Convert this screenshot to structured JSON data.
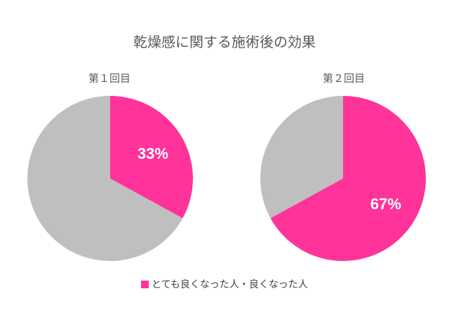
{
  "chart_data": {
    "type": "pie",
    "title": "乾燥感に関する施術後の効果",
    "colors": {
      "highlight": "#ff3399",
      "other": "#bfbfbf"
    },
    "legend": {
      "label": "とても良くなった人・良くなった人",
      "placement": "bottom"
    },
    "pies": [
      {
        "label": "第１回目",
        "value": 33,
        "value_label": "33%"
      },
      {
        "label": "第２回目",
        "value": 67,
        "value_label": "67%"
      }
    ]
  }
}
